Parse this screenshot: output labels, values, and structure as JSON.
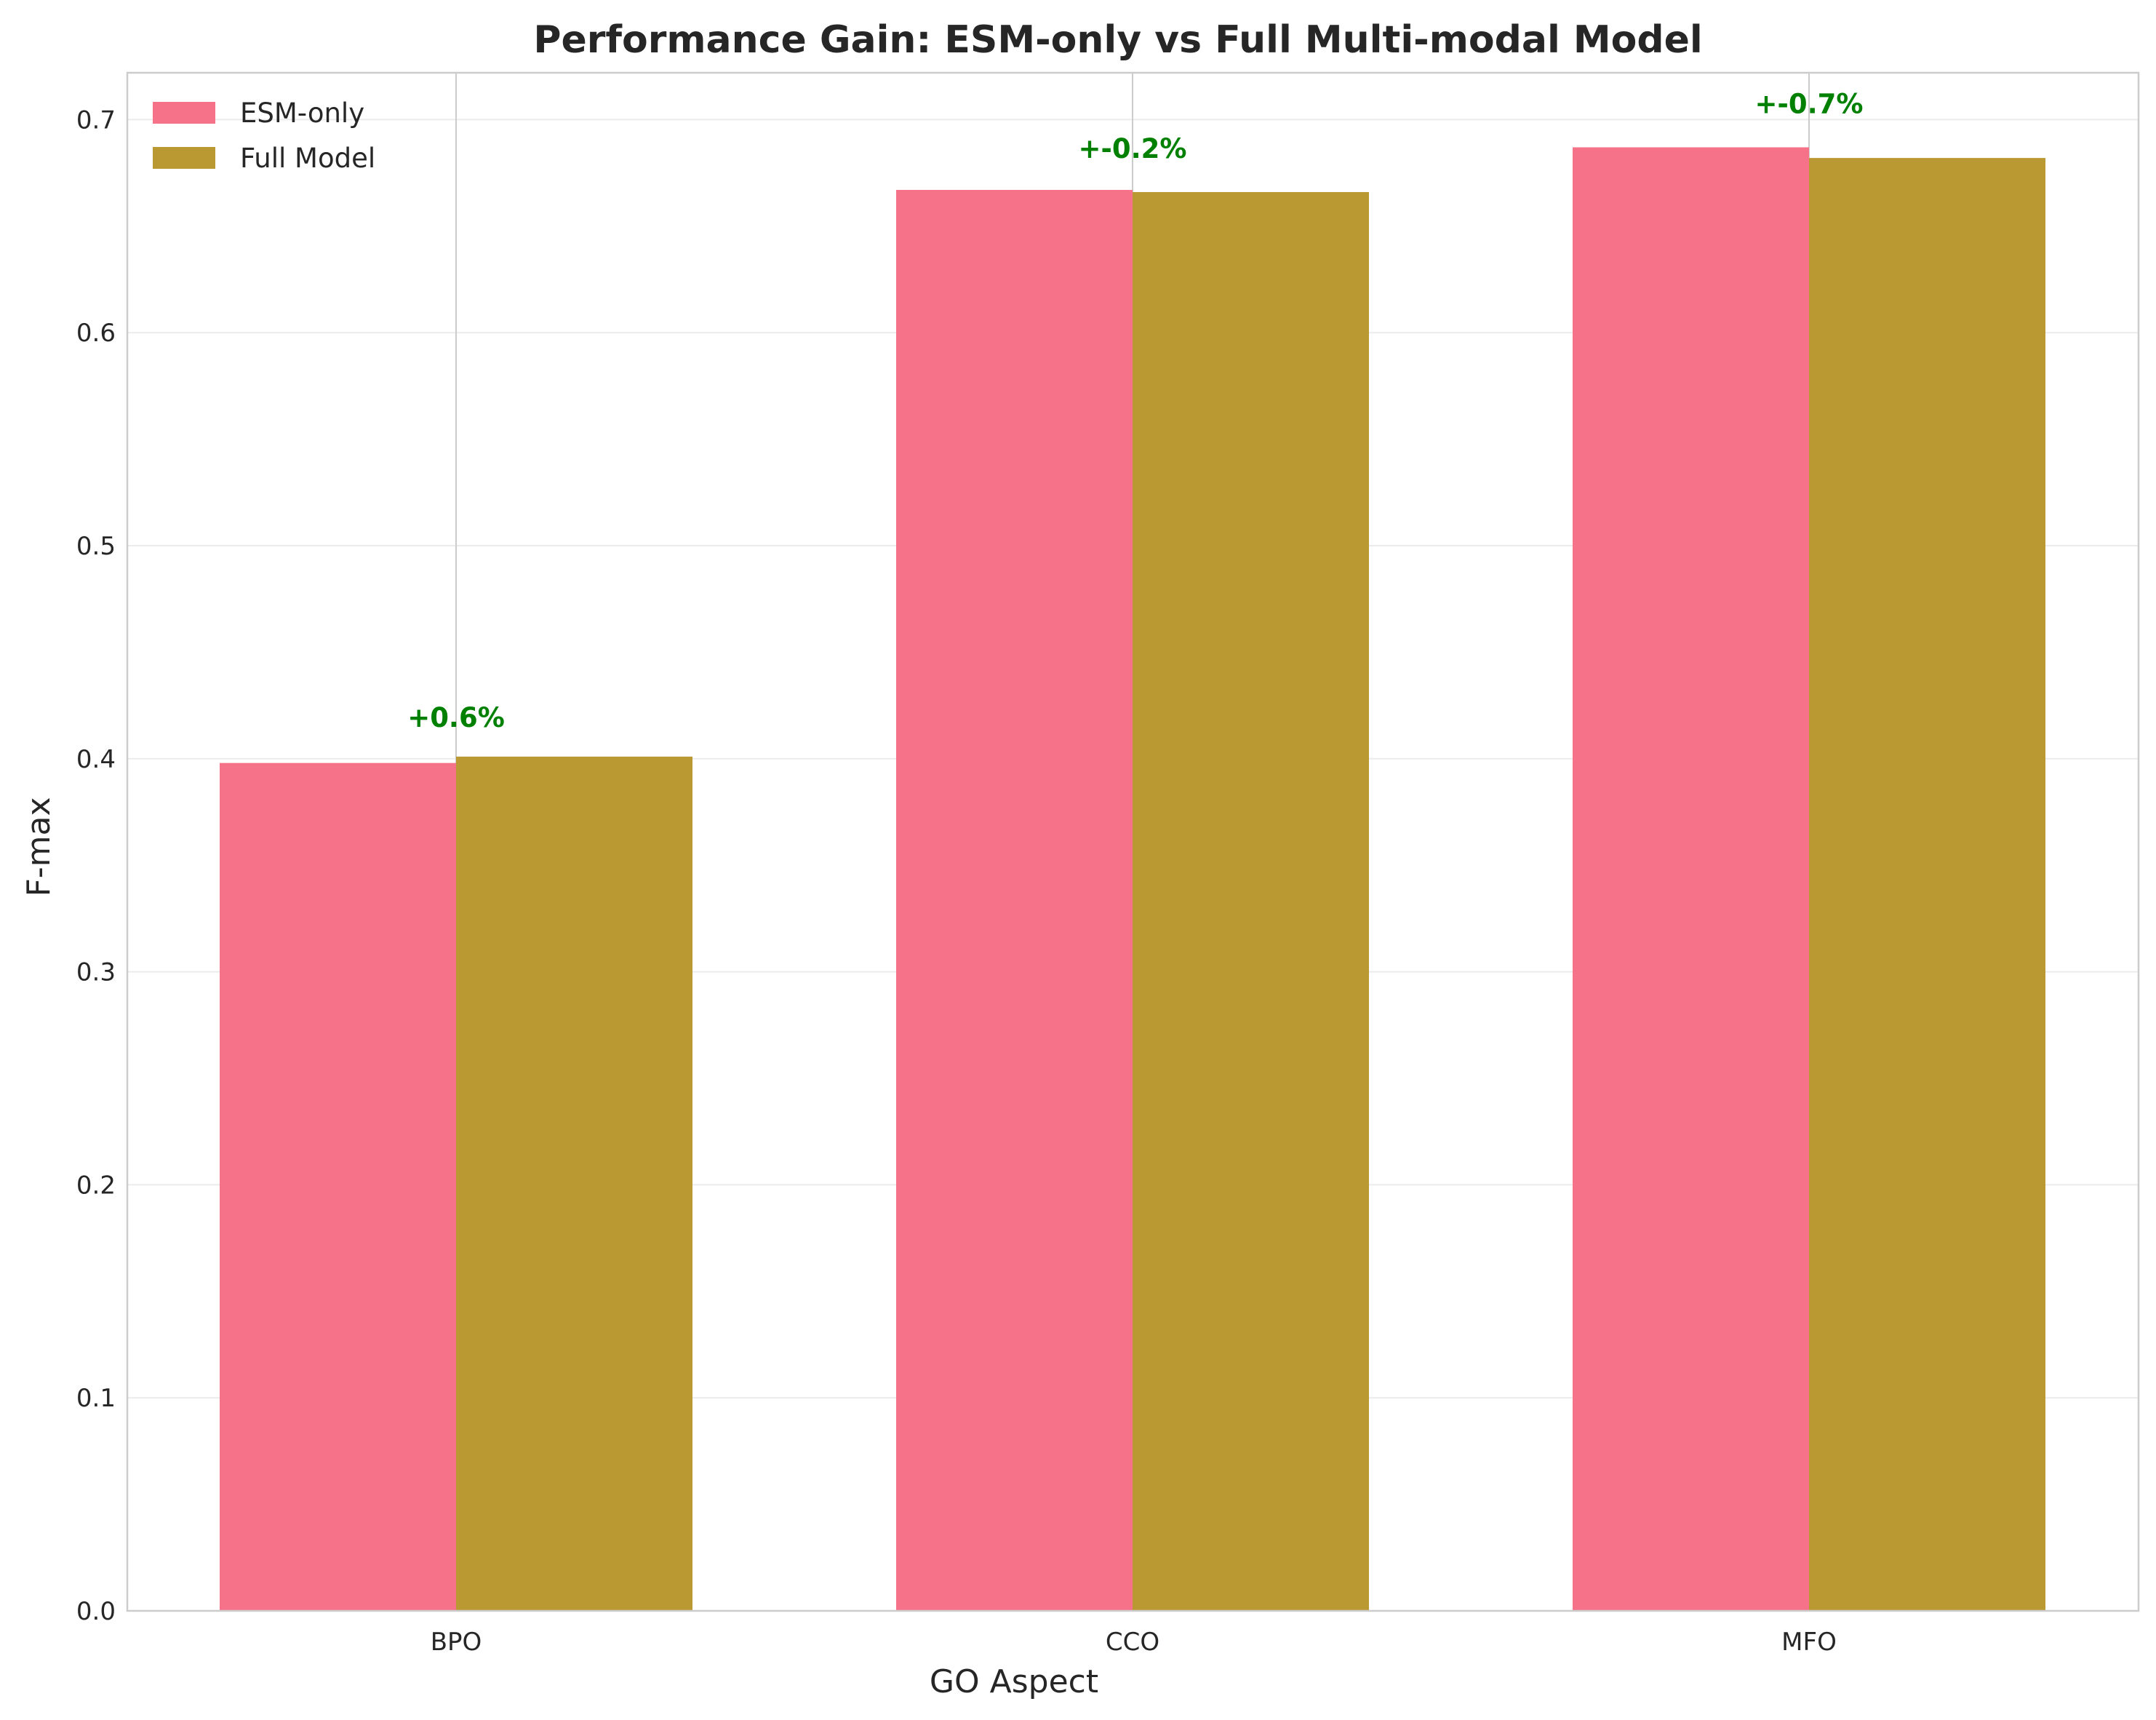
{
  "chart_data": {
    "type": "bar",
    "title": "Performance Gain: ESM-only vs Full Multi-modal Model",
    "xlabel": "GO Aspect",
    "ylabel": "F-max",
    "categories": [
      "BPO",
      "CCO",
      "MFO"
    ],
    "series": [
      {
        "name": "ESM-only",
        "values": [
          0.398,
          0.667,
          0.687
        ],
        "color": "#f57288"
      },
      {
        "name": "Full Model",
        "values": [
          0.401,
          0.666,
          0.682
        ],
        "color": "#ba9832"
      }
    ],
    "annotations": [
      {
        "category": "BPO",
        "text": "+0.6%",
        "y": 0.415
      },
      {
        "category": "CCO",
        "text": "+-0.2%",
        "y": 0.682
      },
      {
        "category": "MFO",
        "text": "+-0.7%",
        "y": 0.703
      }
    ],
    "annotation_color": "#008000",
    "ylim": [
      0,
      0.722
    ],
    "yticks": [
      "0.0",
      "0.1",
      "0.2",
      "0.3",
      "0.4",
      "0.5",
      "0.6",
      "0.7"
    ],
    "grid": true,
    "legend_position": "top-left"
  }
}
